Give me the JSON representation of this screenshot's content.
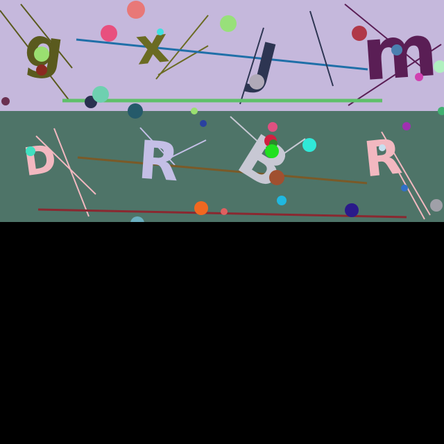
{
  "top_panel": {
    "background": "#c5b8dc",
    "letters": [
      {
        "char": "g",
        "color": "#5a5a1e"
      },
      {
        "char": "x",
        "color": "#6b6b22"
      },
      {
        "char": "J",
        "color": "#2d3552"
      },
      {
        "char": "m",
        "color": "#5a1e55"
      }
    ]
  },
  "bottom_panel": {
    "background": "#4e7468",
    "letters": [
      {
        "char": "D",
        "color": "#f2b8c0"
      },
      {
        "char": "R",
        "color": "#c4bfe6"
      },
      {
        "char": "B",
        "color": "#c8c8d4"
      },
      {
        "char": "R",
        "color": "#f2b8c0"
      }
    ]
  }
}
